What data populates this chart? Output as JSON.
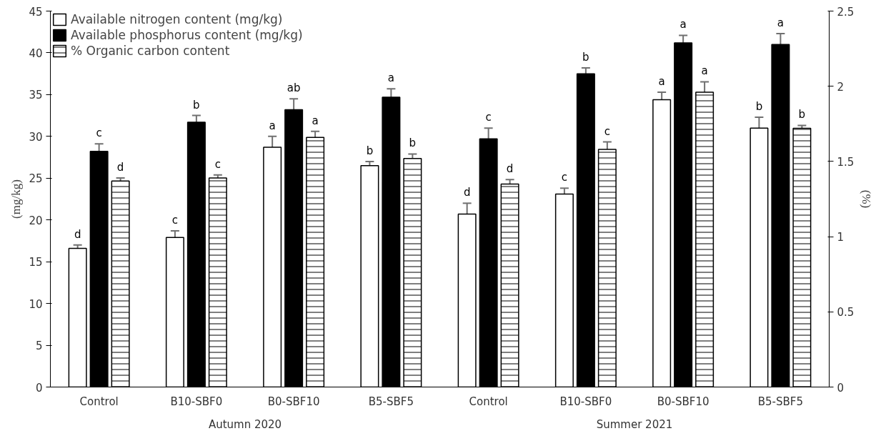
{
  "chart_data": {
    "type": "bar",
    "ylabel": "(mg/kg)",
    "y2label": "(%)",
    "categories": [
      "Control",
      "B10-SBF0",
      "B0-SBF10",
      "B5-SBF5",
      "Control",
      "B10-SBF0",
      "B0-SBF10",
      "B5-SBF5"
    ],
    "annotations": [
      "Autumn 2020",
      "Summer 2021"
    ],
    "series": [
      {
        "name": "Available nitrogen content (mg/kg)",
        "color": "#ffffff",
        "values": [
          16.6,
          17.9,
          28.7,
          26.5,
          20.7,
          23.1,
          34.4,
          31.0
        ],
        "errors": [
          [
            16.6,
            17.0
          ],
          [
            17.9,
            18.7
          ],
          [
            28.7,
            30.0
          ],
          [
            26.5,
            27.0
          ],
          [
            20.7,
            22.0
          ],
          [
            23.1,
            23.8
          ],
          [
            34.4,
            35.3
          ],
          [
            31.0,
            32.3
          ]
        ],
        "value_labels": [
          "d",
          "c",
          "a",
          "b",
          "d",
          "c",
          "a",
          "b"
        ]
      },
      {
        "name": "Available phosphorus content (mg/kg)",
        "color": "#000000",
        "values": [
          28.2,
          31.7,
          33.2,
          34.7,
          29.7,
          37.5,
          41.2,
          41.0
        ],
        "errors": [
          [
            28.2,
            29.1
          ],
          [
            31.7,
            32.5
          ],
          [
            33.2,
            34.5
          ],
          [
            34.7,
            35.7
          ],
          [
            29.7,
            31.0
          ],
          [
            37.5,
            38.2
          ],
          [
            41.2,
            42.1
          ],
          [
            41.0,
            42.3
          ]
        ],
        "value_labels": [
          "c",
          "b",
          "ab",
          "a",
          "c",
          "b",
          "a",
          "a"
        ]
      },
      {
        "name": "% Organic carbon content",
        "color": "#ffffff",
        "axis": "y2",
        "values": [
          1.37,
          1.39,
          1.66,
          1.52,
          1.35,
          1.58,
          1.96,
          1.72
        ],
        "errors": [
          [
            1.37,
            1.39
          ],
          [
            1.39,
            1.41
          ],
          [
            1.66,
            1.7
          ],
          [
            1.52,
            1.55
          ],
          [
            1.35,
            1.38
          ],
          [
            1.58,
            1.63
          ],
          [
            1.96,
            2.03
          ],
          [
            1.72,
            1.74
          ]
        ],
        "value_labels": [
          "d",
          "c",
          "a",
          "b",
          "d",
          "c",
          "a",
          "b"
        ]
      }
    ],
    "ylim": [
      0,
      45
    ],
    "yticks": [
      0,
      5,
      10,
      15,
      20,
      25,
      30,
      35,
      40,
      45
    ],
    "y2lim": [
      0,
      2.5
    ],
    "y2ticks": [
      0,
      0.5,
      1,
      1.5,
      2,
      2.5
    ],
    "grid": false,
    "legend": "top left"
  }
}
